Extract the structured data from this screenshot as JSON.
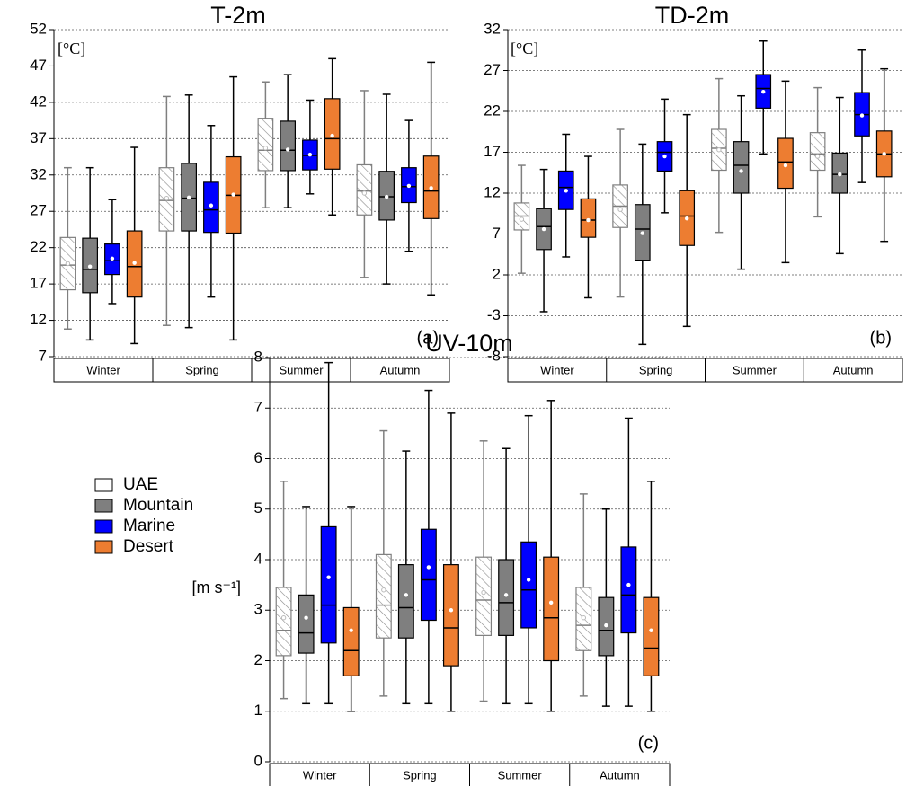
{
  "legend": [
    {
      "name": "UAE",
      "color": "#ffffff",
      "edge": "#7f7f7f",
      "hatch": true
    },
    {
      "name": "Mountain",
      "color": "#7f7f7f",
      "edge": "#000000",
      "hatch": false
    },
    {
      "name": "Marine",
      "color": "#0000ff",
      "edge": "#000000",
      "hatch": false
    },
    {
      "name": "Desert",
      "color": "#ed7d31",
      "edge": "#000000",
      "hatch": false
    }
  ],
  "chart_data": [
    {
      "type": "box",
      "title": "T-2m",
      "y_label": "[°C]",
      "annotation": "(a)",
      "categories": [
        "Winter",
        "Spring",
        "Summer",
        "Autumn"
      ],
      "ylim": [
        7,
        52
      ],
      "yticks": [
        7,
        12,
        17,
        22,
        27,
        32,
        37,
        42,
        47,
        52
      ],
      "grid": true,
      "series": [
        {
          "values": [
            [
              10.8,
              16.2,
              19.6,
              23.4,
              33,
              19.8
            ],
            [
              11.3,
              24.3,
              28.5,
              33,
              42.8,
              28.8
            ],
            [
              27.5,
              32.6,
              35.4,
              39.8,
              44.8,
              35.7
            ],
            [
              17.9,
              26.5,
              29.8,
              33.4,
              43.6,
              29.5
            ]
          ]
        },
        {
          "values": [
            [
              9.3,
              15.8,
              19,
              23.3,
              33,
              19.4
            ],
            [
              11,
              24.3,
              28.8,
              33.6,
              43,
              28.9
            ],
            [
              27.5,
              32.6,
              35.4,
              39.4,
              45.8,
              35.5
            ],
            [
              17,
              25.8,
              29,
              32.5,
              43.1,
              29
            ]
          ]
        },
        {
          "values": [
            [
              14.3,
              18.3,
              20.2,
              22.5,
              28.6,
              20.5
            ],
            [
              15.2,
              24.1,
              27.2,
              31,
              38.8,
              27.8
            ],
            [
              29.4,
              32.7,
              34.7,
              36.8,
              42.3,
              34.8
            ],
            [
              21.5,
              28.2,
              30.4,
              33,
              39.5,
              30.5
            ]
          ]
        },
        {
          "values": [
            [
              8.8,
              15.2,
              19.4,
              24.3,
              35.8,
              19.9
            ],
            [
              9.3,
              24,
              29.2,
              34.5,
              45.5,
              29.3
            ],
            [
              26.5,
              32.8,
              37,
              42.5,
              48,
              37.4
            ],
            [
              15.5,
              26,
              29.8,
              34.6,
              47.5,
              30.2
            ]
          ]
        }
      ]
    },
    {
      "type": "box",
      "title": "TD-2m",
      "y_label": "[°C]",
      "annotation": "(b)",
      "categories": [
        "Winter",
        "Spring",
        "Summer",
        "Autumn"
      ],
      "ylim": [
        -8,
        32
      ],
      "yticks": [
        -8,
        -3,
        2,
        7,
        12,
        17,
        22,
        27,
        32
      ],
      "grid": true,
      "series": [
        {
          "values": [
            [
              2.2,
              7.5,
              9.2,
              10.8,
              15.4,
              8.8
            ],
            [
              -0.7,
              7.8,
              10.4,
              13,
              19.8,
              10
            ],
            [
              7.2,
              14.8,
              17.5,
              19.8,
              26,
              17.3
            ],
            [
              9.1,
              14.8,
              16.8,
              19.4,
              24.9,
              16.5
            ]
          ]
        },
        {
          "values": [
            [
              -2.5,
              5.1,
              7.9,
              10.1,
              14.9,
              7.6
            ],
            [
              -6.5,
              3.8,
              7.6,
              10.6,
              18,
              7.1
            ],
            [
              2.7,
              12,
              15.4,
              18.3,
              23.9,
              14.7
            ],
            [
              4.6,
              12,
              14.3,
              16.9,
              23.7,
              14.3
            ]
          ]
        },
        {
          "values": [
            [
              4.2,
              10,
              12.7,
              14.7,
              19.2,
              12.3
            ],
            [
              9.6,
              14.7,
              17,
              18.3,
              23.5,
              16.5
            ],
            [
              16.8,
              22.4,
              24.8,
              26.5,
              30.6,
              24.4
            ],
            [
              13.3,
              19,
              21.6,
              24.3,
              29.5,
              21.5
            ]
          ]
        },
        {
          "values": [
            [
              -0.8,
              6.6,
              8.7,
              11.3,
              16.5,
              8.7
            ],
            [
              -4.3,
              5.6,
              9.2,
              12.3,
              21.6,
              8.9
            ],
            [
              3.5,
              12.6,
              15.8,
              18.7,
              25.7,
              15.4
            ],
            [
              6.1,
              14,
              16.8,
              19.6,
              27.2,
              16.8
            ]
          ]
        }
      ]
    },
    {
      "type": "box",
      "title": "UV-10m",
      "y_label": "[m s⁻¹]",
      "annotation": "(c)",
      "categories": [
        "Winter",
        "Spring",
        "Summer",
        "Autumn"
      ],
      "ylim": [
        0,
        8
      ],
      "yticks": [
        0,
        1,
        2,
        3,
        4,
        5,
        6,
        7,
        8
      ],
      "grid": true,
      "series": [
        {
          "values": [
            [
              1.25,
              2.1,
              2.6,
              3.45,
              5.55,
              2.85
            ],
            [
              1.3,
              2.45,
              3.1,
              4.1,
              6.55,
              3.4
            ],
            [
              1.2,
              2.5,
              3.2,
              4.05,
              6.35,
              3.35
            ],
            [
              1.3,
              2.2,
              2.7,
              3.45,
              5.3,
              2.85
            ]
          ]
        },
        {
          "values": [
            [
              1.15,
              2.15,
              2.55,
              3.3,
              5.05,
              2.85
            ],
            [
              1.15,
              2.45,
              3.05,
              3.9,
              6.15,
              3.3
            ],
            [
              1.15,
              2.5,
              3.15,
              4,
              6.2,
              3.3
            ],
            [
              1.1,
              2.1,
              2.6,
              3.25,
              5,
              2.7
            ]
          ]
        },
        {
          "values": [
            [
              1.15,
              2.35,
              3.1,
              4.65,
              7.9,
              3.65
            ],
            [
              1.15,
              2.8,
              3.6,
              4.6,
              7.35,
              3.85
            ],
            [
              1.15,
              2.65,
              3.4,
              4.35,
              6.85,
              3.6
            ],
            [
              1.1,
              2.55,
              3.3,
              4.25,
              6.8,
              3.5
            ]
          ]
        },
        {
          "values": [
            [
              1,
              1.7,
              2.2,
              3.05,
              5.05,
              2.6
            ],
            [
              1,
              1.9,
              2.65,
              3.9,
              6.9,
              3
            ],
            [
              1,
              2,
              2.85,
              4.05,
              7.15,
              3.15
            ],
            [
              1,
              1.7,
              2.25,
              3.25,
              5.55,
              2.6
            ]
          ]
        }
      ]
    }
  ]
}
